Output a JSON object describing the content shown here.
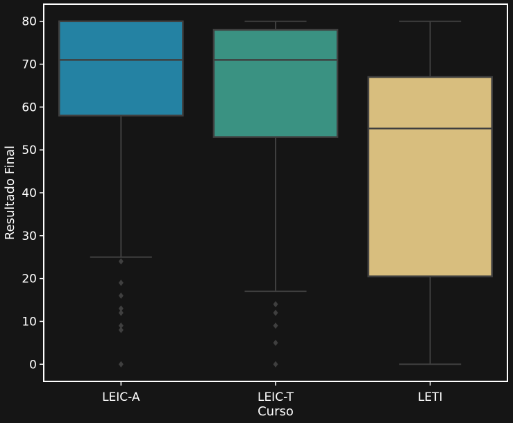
{
  "chart_data": {
    "type": "box",
    "title": "",
    "xlabel": "Curso",
    "ylabel": "Resultado Final",
    "ylim": [
      -4,
      84
    ],
    "yticks": [
      0,
      10,
      20,
      30,
      40,
      50,
      60,
      70,
      80
    ],
    "categories": [
      "LEIC-A",
      "LEIC-T",
      "LETI"
    ],
    "grid": false,
    "boxes": [
      {
        "category": "LEIC-A",
        "color": "#2482a3",
        "whisker_low": 25,
        "q1": 58,
        "median": 71,
        "q3": 80,
        "whisker_high": 80,
        "outliers": [
          24,
          19,
          16,
          13,
          12,
          9,
          8,
          0
        ]
      },
      {
        "category": "LEIC-T",
        "color": "#3a9282",
        "whisker_low": 17,
        "q1": 53,
        "median": 71,
        "q3": 78,
        "whisker_high": 80,
        "outliers": [
          14,
          12,
          9,
          5,
          0
        ]
      },
      {
        "category": "LETI",
        "color": "#d8be7e",
        "whisker_low": 0,
        "q1": 20.5,
        "median": 55,
        "q3": 67,
        "whisker_high": 80,
        "outliers": []
      }
    ]
  }
}
